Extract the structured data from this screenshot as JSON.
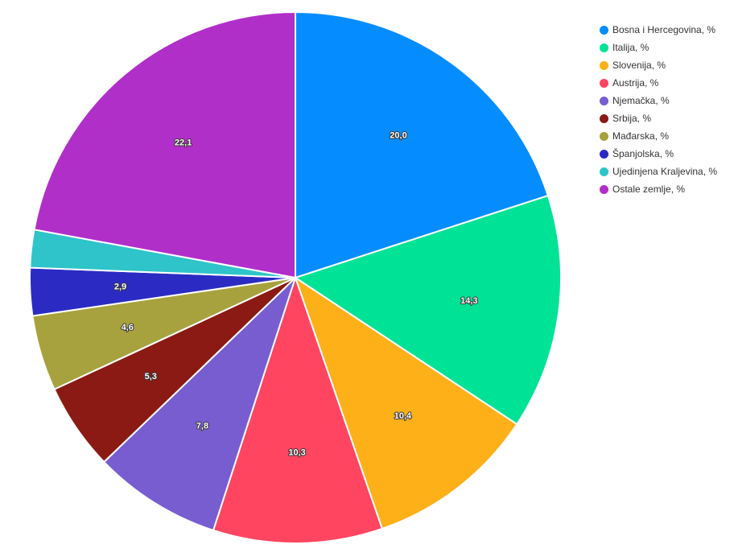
{
  "chart_data": {
    "type": "pie",
    "start": "top",
    "direction": "clockwise",
    "slices": [
      {
        "name": "Bosna i Hercegovina, %",
        "value": 20.0,
        "label": "20,0",
        "color": "#058DFF"
      },
      {
        "name": "Italija, %",
        "value": 14.3,
        "label": "14,3",
        "color": "#00E396"
      },
      {
        "name": "Slovenija, %",
        "value": 10.4,
        "label": "10,4",
        "color": "#FEB019"
      },
      {
        "name": "Austrija, %",
        "value": 10.3,
        "label": "10,3",
        "color": "#FF4560"
      },
      {
        "name": "Njemačka, %",
        "value": 7.8,
        "label": "7,8",
        "color": "#775DD0"
      },
      {
        "name": "Srbija, %",
        "value": 5.3,
        "label": "5,3",
        "color": "#8B1A14"
      },
      {
        "name": "Mađarska, %",
        "value": 4.6,
        "label": "4,6",
        "color": "#A8A23E"
      },
      {
        "name": "Španjolska, %",
        "value": 2.9,
        "label": "2,9",
        "color": "#2B2BC4"
      },
      {
        "name": "Ujedinjena Kraljevina, %",
        "value": 2.3,
        "label": "",
        "color": "#2EC4C9"
      },
      {
        "name": "Ostale zemlje, %",
        "value": 22.1,
        "label": "22,1",
        "color": "#B12FC9"
      }
    ],
    "legend_position": "top-right"
  }
}
